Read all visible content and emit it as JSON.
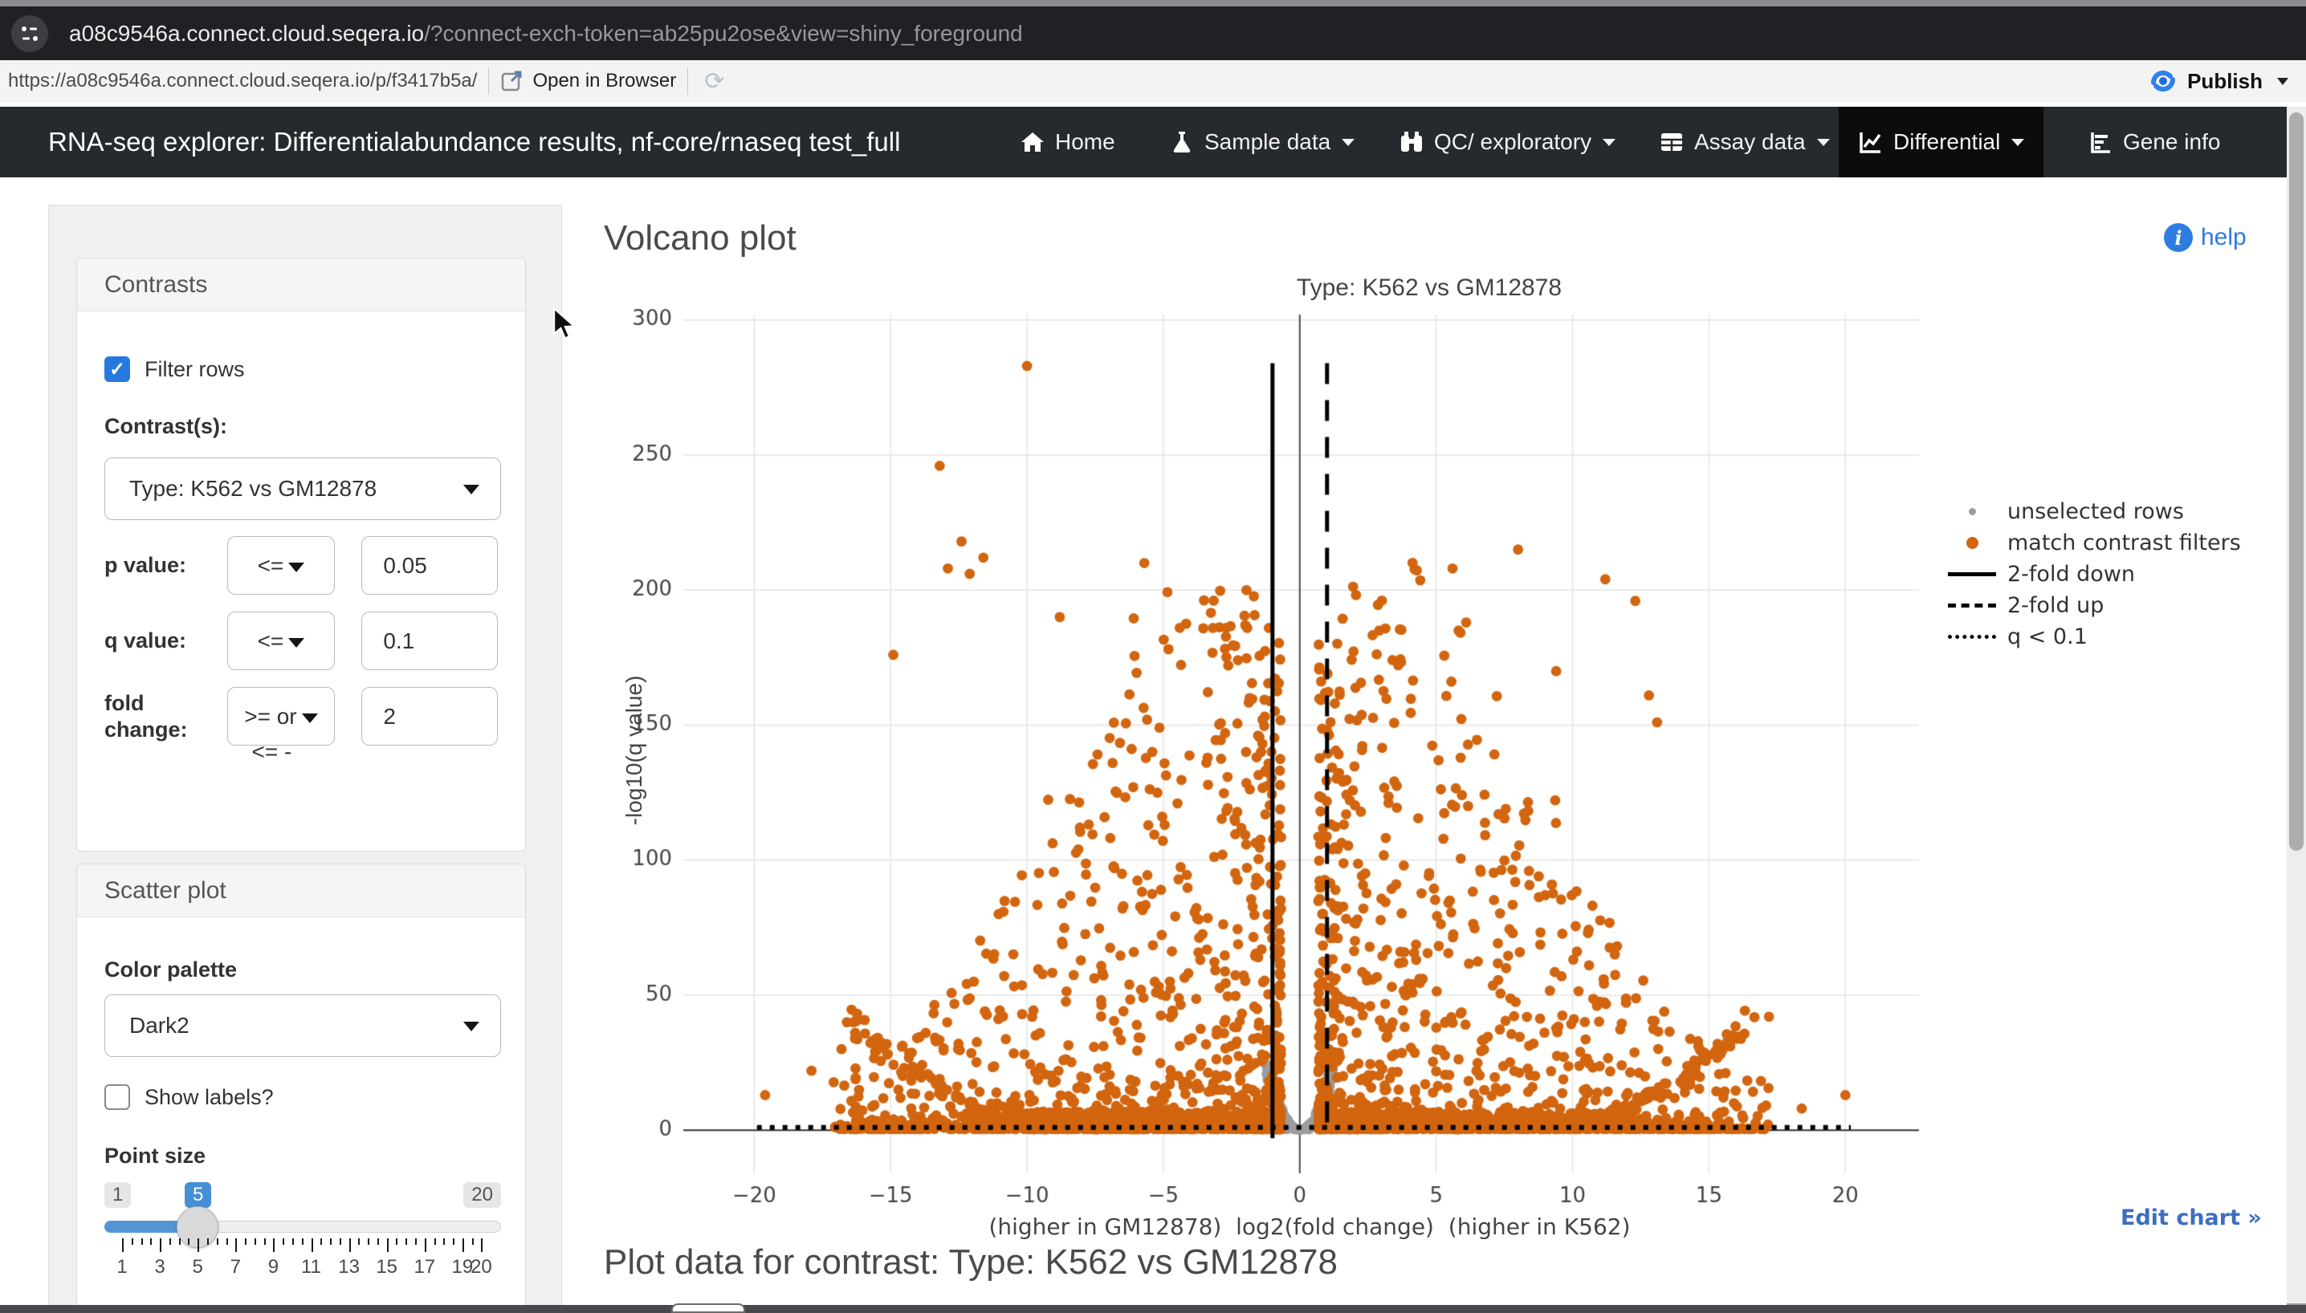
{
  "browser": {
    "tab_host": "a08c9546a.connect.cloud.seqera.io",
    "tab_query": "/?connect-exch-token=ab25pu2ose&view=shiny_foreground",
    "address": "https://a08c9546a.connect.cloud.seqera.io/p/f3417b5a/",
    "open_in_browser": "Open in Browser",
    "publish": "Publish"
  },
  "navbar": {
    "title": "RNA-seq explorer: Differentialabundance results, nf-core/rnaseq test_full",
    "items": [
      {
        "label": "Home",
        "icon": "home-icon",
        "dropdown": false,
        "active": false
      },
      {
        "label": "Sample data",
        "icon": "flask-icon",
        "dropdown": true,
        "active": false
      },
      {
        "label": "QC/ exploratory",
        "icon": "binoculars-icon",
        "dropdown": true,
        "active": false
      },
      {
        "label": "Assay data",
        "icon": "table-icon",
        "dropdown": true,
        "active": false
      },
      {
        "label": "Differential",
        "icon": "chart-line-icon",
        "dropdown": true,
        "active": true
      },
      {
        "label": "Gene info",
        "icon": "chart-bar-icon",
        "dropdown": false,
        "active": false
      }
    ]
  },
  "sidebar": {
    "contrasts": {
      "title": "Contrasts",
      "filter_rows_label": "Filter rows",
      "filter_rows_checked": true,
      "contrast_label": "Contrast(s):",
      "contrast_value": "Type: K562 vs GM12878",
      "rows": [
        {
          "label": "p value:",
          "op": "<=",
          "value": "0.05"
        },
        {
          "label": "q value:",
          "op": "<=",
          "value": "0.1"
        },
        {
          "label": "fold change:",
          "op": ">= or",
          "op_overflow": "<= -",
          "value": "2"
        }
      ]
    },
    "scatter": {
      "title": "Scatter plot",
      "palette_label": "Color palette",
      "palette_value": "Dark2",
      "show_labels_label": "Show labels?",
      "show_labels_checked": false,
      "point_size_label": "Point size",
      "slider": {
        "min": 1,
        "max": 20,
        "value": 5,
        "min_label": "1",
        "value_label": "5",
        "max_label": "20",
        "tick_labels": [
          {
            "v": 1,
            "t": "1"
          },
          {
            "v": 3,
            "t": "3"
          },
          {
            "v": 5,
            "t": "5"
          },
          {
            "v": 7,
            "t": "7"
          },
          {
            "v": 9,
            "t": "9"
          },
          {
            "v": 11,
            "t": "11"
          },
          {
            "v": 13,
            "t": "13"
          },
          {
            "v": 15,
            "t": "15"
          },
          {
            "v": 17,
            "t": "17"
          },
          {
            "v": 19,
            "t": "19"
          },
          {
            "v": 20,
            "t": "20"
          }
        ]
      }
    }
  },
  "main": {
    "heading": "Volcano plot",
    "help_label": "help",
    "edit_chart_label": "Edit chart »",
    "table_heading": "Plot data for contrast: Type: K562 vs GM12878"
  },
  "glyphs": {
    "check": "✓",
    "refresh": "⟳",
    "info": "i"
  },
  "chart_data": {
    "type": "scatter",
    "title": "Type: K562 vs GM12878",
    "xlabel": "(higher in GM12878)  log2(fold change)  (higher in K562)",
    "ylabel": "-log10(q value)",
    "xlim": [
      -22.6,
      22.7
    ],
    "ylim": [
      -16,
      302
    ],
    "grid": true,
    "legend_position": "right",
    "x_ticks": [
      {
        "v": -20,
        "t": "−20"
      },
      {
        "v": -15,
        "t": "−15"
      },
      {
        "v": -10,
        "t": "−10"
      },
      {
        "v": -5,
        "t": "−5"
      },
      {
        "v": 0,
        "t": "0"
      },
      {
        "v": 5,
        "t": "5"
      },
      {
        "v": 10,
        "t": "10"
      },
      {
        "v": 15,
        "t": "15"
      },
      {
        "v": 20,
        "t": "20"
      }
    ],
    "y_ticks": [
      {
        "v": 0,
        "t": "0"
      },
      {
        "v": 50,
        "t": "50"
      },
      {
        "v": 100,
        "t": "100"
      },
      {
        "v": 150,
        "t": "150"
      },
      {
        "v": 200,
        "t": "200"
      },
      {
        "v": 250,
        "t": "250"
      },
      {
        "v": 300,
        "t": "300"
      }
    ],
    "series_colors": {
      "unselected": "#9c9c9c",
      "selected": "#d2650f"
    },
    "legend": [
      {
        "label": "unselected rows",
        "marker": "dot-small",
        "color": "#9c9c9c"
      },
      {
        "label": "match contrast filters",
        "marker": "dot",
        "color": "#d2650f"
      },
      {
        "label": "2-fold down",
        "marker": "line-solid",
        "color": "#000000"
      },
      {
        "label": "2-fold up",
        "marker": "line-dashed",
        "color": "#000000"
      },
      {
        "label": "q < 0.1",
        "marker": "line-dotted",
        "color": "#000000"
      }
    ],
    "thresholds": {
      "fold_down_x": -1,
      "fold_up_x": 1,
      "q_line_y": 1,
      "line_top_y": 284
    },
    "outlier_points": [
      [
        -10,
        283
      ],
      [
        -13.2,
        246
      ],
      [
        -12.4,
        218
      ],
      [
        -11.6,
        212
      ],
      [
        -12.9,
        208
      ],
      [
        -12.1,
        206
      ],
      [
        -5.7,
        210
      ],
      [
        -4.4,
        186
      ],
      [
        -8.8,
        190
      ],
      [
        -14.9,
        176
      ],
      [
        -16.8,
        30
      ],
      [
        -19.6,
        13
      ],
      [
        -17.9,
        22
      ],
      [
        5.6,
        208
      ],
      [
        8,
        215
      ],
      [
        11.2,
        204
      ],
      [
        6.1,
        188
      ],
      [
        12.3,
        196
      ],
      [
        12.8,
        161
      ],
      [
        9.4,
        170
      ],
      [
        13.1,
        151
      ],
      [
        17.2,
        42
      ],
      [
        18.4,
        8
      ],
      [
        20,
        13
      ]
    ],
    "point_cloud": {
      "seed": 20,
      "bulk_per_side": 1200,
      "strip_per_side": 520,
      "rim_per_side": 72,
      "sparse_per_side": 48,
      "grey_u": 160,
      "grey_fill": 140
    }
  }
}
